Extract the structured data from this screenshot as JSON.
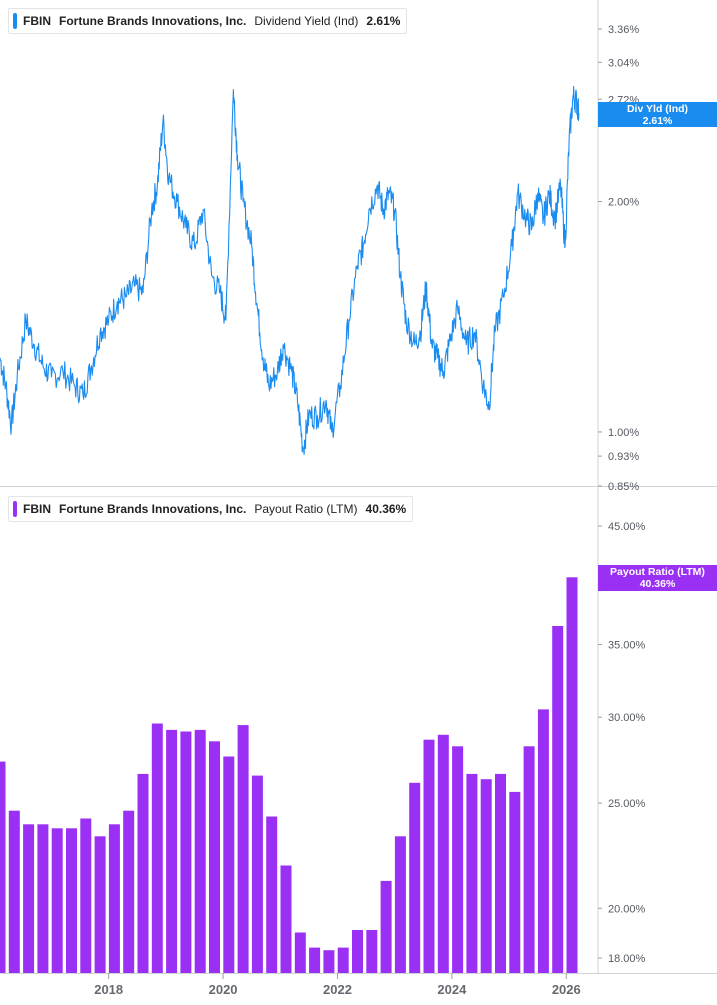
{
  "colors": {
    "yield": "#1a8cf0",
    "payout": "#9b30f5",
    "axis": "#cfd3d8"
  },
  "top_legend": {
    "ticker": "FBIN",
    "name": "Fortune Brands Innovations, Inc.",
    "metric": "Dividend Yield (Ind)",
    "value": "2.61%"
  },
  "bottom_legend": {
    "ticker": "FBIN",
    "name": "Fortune Brands Innovations, Inc.",
    "metric": "Payout Ratio (LTM)",
    "value": "40.36%"
  },
  "top_flag": {
    "line1": "Div Yld (Ind)",
    "line2": "2.61%"
  },
  "bottom_flag": {
    "line1": "Payout Ratio (LTM)",
    "line2": "40.36%"
  },
  "chart_data": [
    {
      "type": "line",
      "series": [
        {
          "name": "Dividend Yield (Ind)"
        }
      ],
      "y_scale": "log",
      "ylim": [
        0.85,
        3.9
      ],
      "yticks": [
        "3.36%",
        "3.04%",
        "2.72%",
        "2.00%",
        "1.00%",
        "0.93%",
        "0.85%"
      ],
      "xlim": [
        2016.1,
        2026.4
      ],
      "points": [
        [
          2016.1,
          1.25
        ],
        [
          2016.2,
          1.15
        ],
        [
          2016.3,
          1.02
        ],
        [
          2016.4,
          1.18
        ],
        [
          2016.55,
          1.4
        ],
        [
          2016.7,
          1.3
        ],
        [
          2016.85,
          1.22
        ],
        [
          2017.0,
          1.18
        ],
        [
          2017.2,
          1.2
        ],
        [
          2017.4,
          1.15
        ],
        [
          2017.55,
          1.12
        ],
        [
          2017.7,
          1.22
        ],
        [
          2017.85,
          1.35
        ],
        [
          2018.0,
          1.4
        ],
        [
          2018.15,
          1.48
        ],
        [
          2018.3,
          1.5
        ],
        [
          2018.45,
          1.55
        ],
        [
          2018.6,
          1.52
        ],
        [
          2018.75,
          1.95
        ],
        [
          2018.85,
          2.1
        ],
        [
          2018.95,
          2.55
        ],
        [
          2019.05,
          2.15
        ],
        [
          2019.2,
          2.0
        ],
        [
          2019.35,
          1.85
        ],
        [
          2019.5,
          1.75
        ],
        [
          2019.65,
          1.95
        ],
        [
          2019.8,
          1.6
        ],
        [
          2019.95,
          1.52
        ],
        [
          2020.05,
          1.4
        ],
        [
          2020.18,
          2.8
        ],
        [
          2020.25,
          2.3
        ],
        [
          2020.35,
          2.0
        ],
        [
          2020.5,
          1.75
        ],
        [
          2020.6,
          1.45
        ],
        [
          2020.7,
          1.25
        ],
        [
          2020.8,
          1.15
        ],
        [
          2020.95,
          1.2
        ],
        [
          2021.05,
          1.3
        ],
        [
          2021.2,
          1.2
        ],
        [
          2021.3,
          1.1
        ],
        [
          2021.4,
          0.95
        ],
        [
          2021.5,
          1.05
        ],
        [
          2021.65,
          1.05
        ],
        [
          2021.8,
          1.1
        ],
        [
          2021.9,
          1.0
        ],
        [
          2022.05,
          1.15
        ],
        [
          2022.2,
          1.4
        ],
        [
          2022.35,
          1.65
        ],
        [
          2022.45,
          1.75
        ],
        [
          2022.55,
          1.95
        ],
        [
          2022.7,
          2.1
        ],
        [
          2022.8,
          1.95
        ],
        [
          2022.9,
          2.05
        ],
        [
          2023.0,
          1.95
        ],
        [
          2023.1,
          1.6
        ],
        [
          2023.2,
          1.4
        ],
        [
          2023.35,
          1.3
        ],
        [
          2023.45,
          1.35
        ],
        [
          2023.55,
          1.55
        ],
        [
          2023.65,
          1.3
        ],
        [
          2023.75,
          1.25
        ],
        [
          2023.85,
          1.2
        ],
        [
          2023.95,
          1.3
        ],
        [
          2024.1,
          1.45
        ],
        [
          2024.25,
          1.3
        ],
        [
          2024.4,
          1.35
        ],
        [
          2024.55,
          1.15
        ],
        [
          2024.65,
          1.08
        ],
        [
          2024.75,
          1.35
        ],
        [
          2024.9,
          1.5
        ],
        [
          2025.05,
          1.75
        ],
        [
          2025.15,
          2.05
        ],
        [
          2025.3,
          1.9
        ],
        [
          2025.4,
          1.85
        ],
        [
          2025.5,
          2.05
        ],
        [
          2025.6,
          1.9
        ],
        [
          2025.7,
          2.05
        ],
        [
          2025.8,
          1.9
        ],
        [
          2025.9,
          2.1
        ],
        [
          2025.98,
          1.75
        ],
        [
          2026.05,
          2.4
        ],
        [
          2026.12,
          2.75
        ],
        [
          2026.18,
          2.7
        ],
        [
          2026.22,
          2.61
        ]
      ]
    },
    {
      "type": "bar",
      "series": [
        {
          "name": "Payout Ratio (LTM)"
        }
      ],
      "y_scale": "log",
      "ylim": [
        17.5,
        47
      ],
      "yticks": [
        "45.00%",
        "35.00%",
        "30.00%",
        "25.00%",
        "20.00%",
        "18.00%"
      ],
      "x": [
        2016.1,
        2016.35,
        2016.6,
        2016.85,
        2017.1,
        2017.35,
        2017.6,
        2017.85,
        2018.1,
        2018.35,
        2018.6,
        2018.85,
        2019.1,
        2019.35,
        2019.6,
        2019.85,
        2020.1,
        2020.35,
        2020.6,
        2020.85,
        2021.1,
        2021.35,
        2021.6,
        2021.85,
        2022.1,
        2022.35,
        2022.6,
        2022.85,
        2023.1,
        2023.35,
        2023.6,
        2023.85,
        2024.1,
        2024.35,
        2024.6,
        2024.85,
        2025.1,
        2025.35,
        2025.6,
        2025.85,
        2026.1
      ],
      "values": [
        27.3,
        24.6,
        23.9,
        23.9,
        23.7,
        23.7,
        24.2,
        23.3,
        23.9,
        24.6,
        26.6,
        29.6,
        29.2,
        29.1,
        29.2,
        28.5,
        27.6,
        29.5,
        26.5,
        24.3,
        21.9,
        19.0,
        18.4,
        18.3,
        18.4,
        19.1,
        19.1,
        21.2,
        23.3,
        26.1,
        28.6,
        28.9,
        28.2,
        26.6,
        26.3,
        26.6,
        25.6,
        28.2,
        30.5,
        36.4,
        40.36
      ],
      "x_tick_labels": [
        "2018",
        "2020",
        "2022",
        "2024",
        "2026"
      ]
    }
  ]
}
